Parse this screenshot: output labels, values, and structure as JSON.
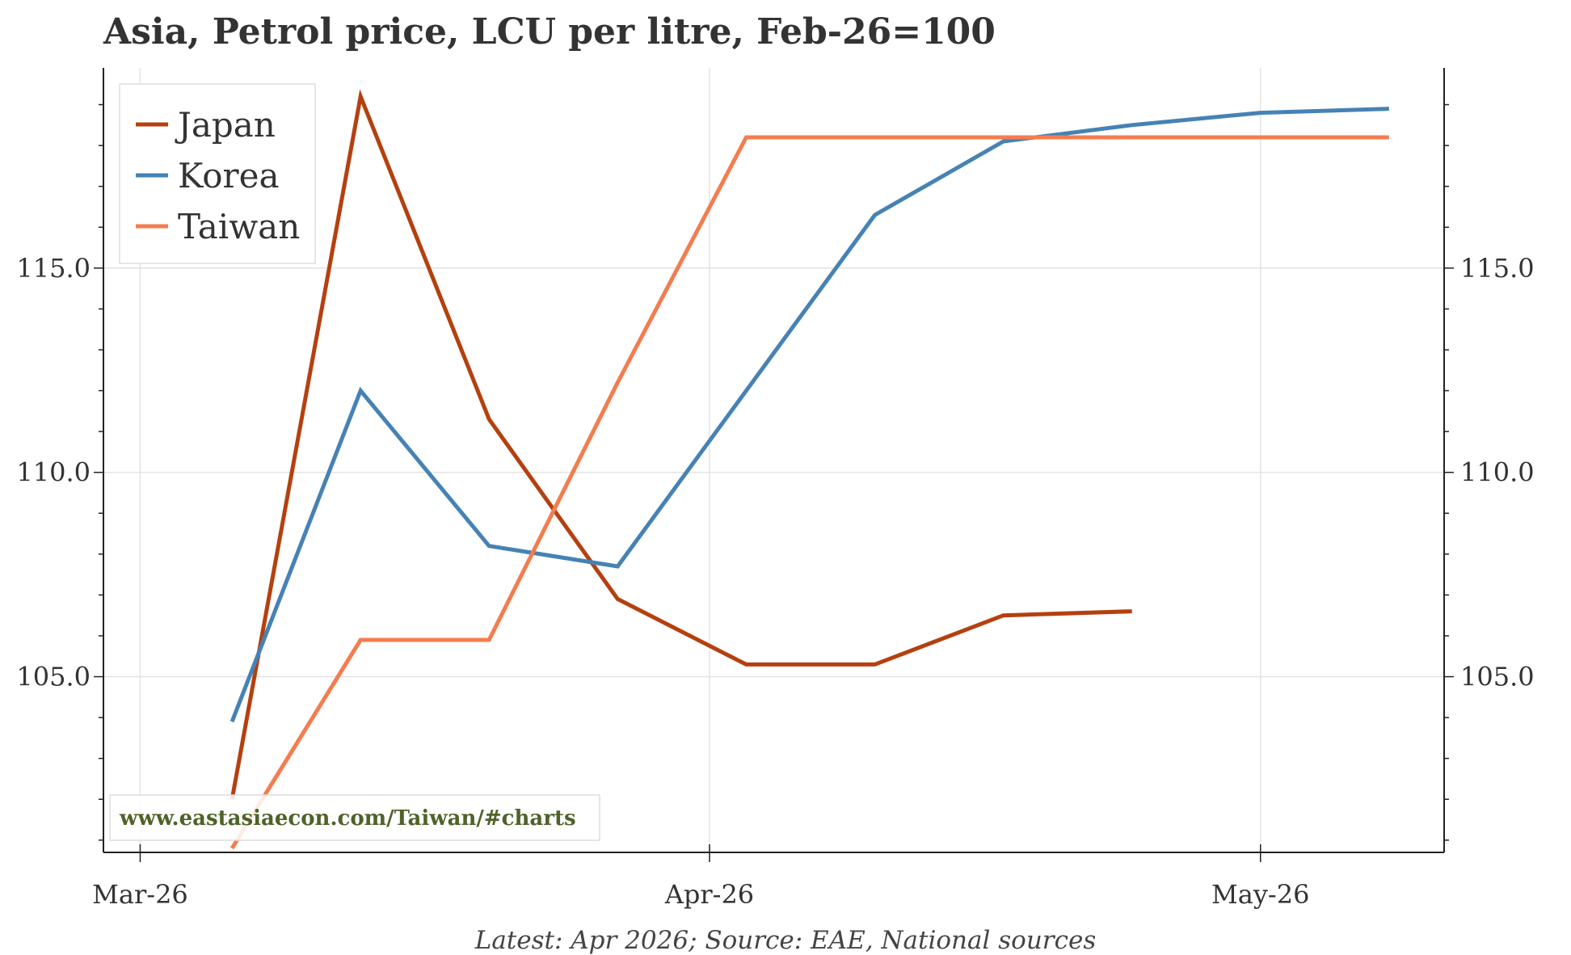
{
  "title": "Asia, Petrol price, LCU per litre, Feb-26=100",
  "source": "Latest: Apr 2026; Source: EAE, National sources",
  "watermark": "www.eastasiaecon.com/Taiwan/#charts",
  "chart_data": {
    "type": "line",
    "title": "Asia, Petrol price, LCU per litre, Feb-26=100",
    "xlabel": "",
    "ylabel": "",
    "x_ticks": [
      {
        "label": "Mar-26",
        "date": "2026-03-01"
      },
      {
        "label": "Apr-26",
        "date": "2026-04-01"
      },
      {
        "label": "May-26",
        "date": "2026-05-01"
      }
    ],
    "xlim": [
      "2026-02-27",
      "2026-05-11"
    ],
    "y_ticks": [
      105.0,
      110.0,
      115.0
    ],
    "y_tick_labels": [
      "105.0",
      "110.0",
      "115.0"
    ],
    "ylim": [
      100.7,
      119.9
    ],
    "dual_y_axis": true,
    "grid": true,
    "legend_position": "top-left",
    "series": [
      {
        "name": "Japan",
        "color": "#b5400f",
        "x": [
          "2026-03-06",
          "2026-03-13",
          "2026-03-20",
          "2026-03-27",
          "2026-04-03",
          "2026-04-10",
          "2026-04-17",
          "2026-04-24"
        ],
        "values": [
          102.0,
          119.2,
          111.3,
          106.9,
          105.3,
          105.3,
          106.5,
          106.6
        ]
      },
      {
        "name": "Korea",
        "color": "#4682b4",
        "x": [
          "2026-03-06",
          "2026-03-13",
          "2026-03-20",
          "2026-03-27",
          "2026-04-10",
          "2026-04-17",
          "2026-04-24",
          "2026-05-01",
          "2026-05-08"
        ],
        "values": [
          103.9,
          112.0,
          108.2,
          107.7,
          116.3,
          118.1,
          118.5,
          118.8,
          118.9
        ]
      },
      {
        "name": "Taiwan",
        "color": "#f47c4f",
        "x": [
          "2026-03-06",
          "2026-03-13",
          "2026-03-20",
          "2026-03-27",
          "2026-04-03",
          "2026-04-10",
          "2026-04-17",
          "2026-04-24",
          "2026-05-01",
          "2026-05-08"
        ],
        "values": [
          100.8,
          105.9,
          105.9,
          112.2,
          118.2,
          118.2,
          118.2,
          118.2,
          118.2,
          118.2
        ]
      }
    ]
  }
}
